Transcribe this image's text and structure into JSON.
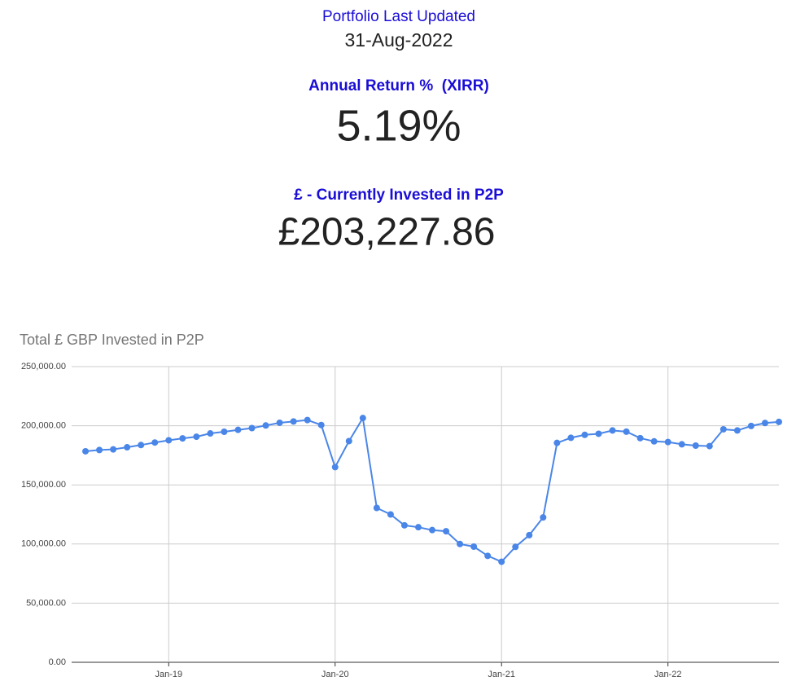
{
  "header": {
    "updated_label": "Portfolio Last Updated",
    "updated_date": "31-Aug-2022",
    "return_label": "Annual Return %  (XIRR)",
    "return_value": "5.19%",
    "invested_label": "£ - Currently Invested in P2P",
    "invested_value": "£203,227.86"
  },
  "chart_data": {
    "type": "line",
    "title": "Total £ GBP Invested in P2P",
    "x": [
      "2018-06",
      "2018-07",
      "2018-08",
      "2018-09",
      "2018-10",
      "2018-11",
      "2018-12",
      "2019-01",
      "2019-02",
      "2019-03",
      "2019-04",
      "2019-05",
      "2019-06",
      "2019-07",
      "2019-08",
      "2019-09",
      "2019-10",
      "2019-11",
      "2019-12",
      "2020-01",
      "2020-02",
      "2020-03",
      "2020-04",
      "2020-05",
      "2020-06",
      "2020-07",
      "2020-08",
      "2020-09",
      "2020-10",
      "2020-11",
      "2020-12",
      "2021-01",
      "2021-02",
      "2021-03",
      "2021-04",
      "2021-05",
      "2021-06",
      "2021-07",
      "2021-08",
      "2021-09",
      "2021-10",
      "2021-11",
      "2021-12",
      "2022-01",
      "2022-02",
      "2022-03",
      "2022-04",
      "2022-05",
      "2022-06",
      "2022-07",
      "2022-08"
    ],
    "series": [
      {
        "name": "Total £ GBP Invested in P2P",
        "color": "#4a86e8",
        "values": [
          178400,
          179500,
          180000,
          181800,
          183700,
          185800,
          187700,
          189300,
          190700,
          193500,
          194900,
          196500,
          198000,
          200200,
          202500,
          203600,
          204800,
          200600,
          165000,
          187000,
          206500,
          130500,
          125000,
          115800,
          114200,
          111800,
          110800,
          100000,
          97800,
          90000,
          85000,
          97600,
          107500,
          122500,
          185500,
          189800,
          192300,
          193200,
          196000,
          195000,
          189500,
          186800,
          186200,
          184300,
          183200,
          182800,
          197000,
          196000,
          199800,
          202300,
          203228
        ]
      }
    ],
    "xlim": [
      "2018-06",
      "2022-09"
    ],
    "xticks": [
      {
        "value": "2019-01",
        "label": "Jan-19"
      },
      {
        "value": "2020-01",
        "label": "Jan-20"
      },
      {
        "value": "2021-01",
        "label": "Jan-21"
      },
      {
        "value": "2022-01",
        "label": "Jan-22"
      }
    ],
    "ylim": [
      0,
      250000
    ],
    "yticks": [
      {
        "value": 0,
        "label": "0.00"
      },
      {
        "value": 50000,
        "label": "50,000.00"
      },
      {
        "value": 100000,
        "label": "100,000.00"
      },
      {
        "value": 150000,
        "label": "150,000.00"
      },
      {
        "value": 200000,
        "label": "200,000.00"
      },
      {
        "value": 250000,
        "label": "250,000.00"
      }
    ],
    "grid": true
  }
}
